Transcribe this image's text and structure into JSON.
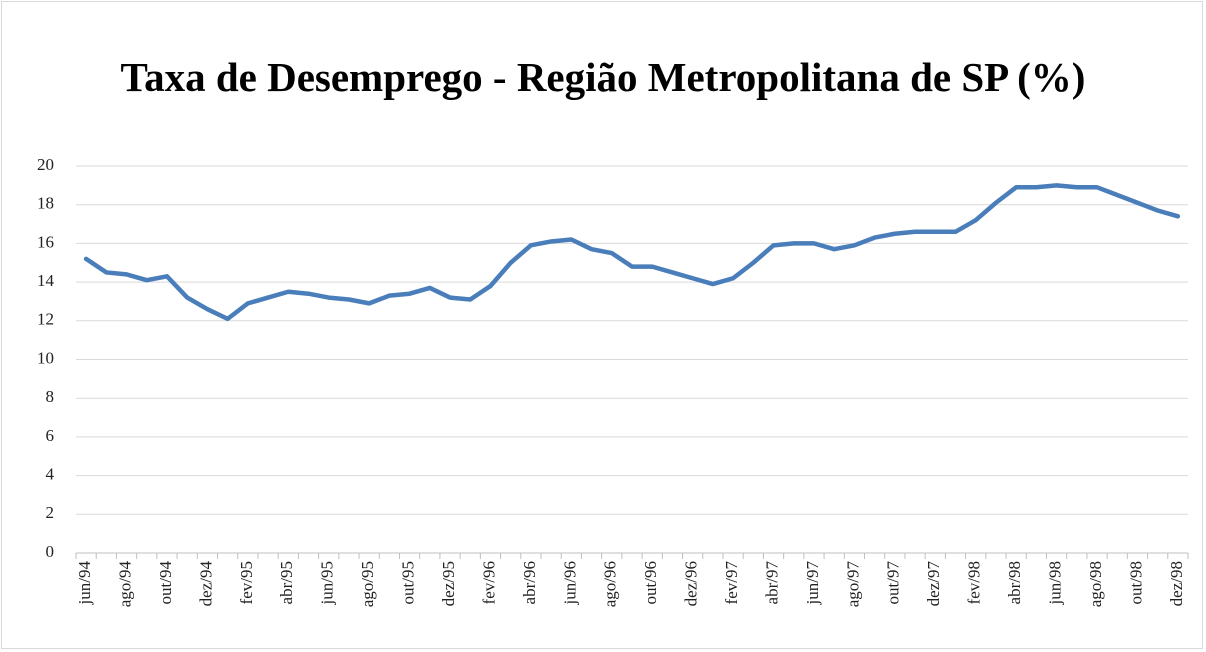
{
  "chart_data": {
    "type": "line",
    "title": "Taxa de Desemprego - Região Metropolitana de SP (%)",
    "categories": [
      "jun/94",
      null,
      "ago/94",
      null,
      "out/94",
      null,
      "dez/94",
      null,
      "fev/95",
      null,
      "abr/95",
      null,
      "jun/95",
      null,
      "ago/95",
      null,
      "out/95",
      null,
      "dez/95",
      null,
      "fev/96",
      null,
      "abr/96",
      null,
      "jun/96",
      null,
      "ago/96",
      null,
      "out/96",
      null,
      "dez/96",
      null,
      "fev/97",
      null,
      "abr/97",
      null,
      "jun/97",
      null,
      "ago/97",
      null,
      "out/97",
      null,
      "dez/97",
      null,
      "fev/98",
      null,
      "abr/98",
      null,
      "jun/98",
      null,
      "ago/98",
      null,
      "out/98",
      null,
      "dez/98"
    ],
    "values": [
      15.2,
      14.5,
      14.4,
      14.1,
      14.3,
      13.2,
      12.6,
      12.1,
      12.9,
      13.2,
      13.5,
      13.4,
      13.2,
      13.1,
      12.9,
      13.3,
      13.4,
      13.7,
      13.2,
      13.1,
      13.8,
      15.0,
      15.9,
      16.1,
      16.2,
      15.7,
      15.5,
      14.8,
      14.8,
      14.5,
      14.2,
      13.9,
      14.2,
      15.0,
      15.9,
      16.0,
      16.0,
      15.7,
      15.9,
      16.3,
      16.5,
      16.6,
      16.6,
      16.6,
      17.2,
      18.1,
      18.9,
      18.9,
      19.0,
      18.9,
      18.9,
      18.5,
      18.1,
      17.7,
      17.4
    ],
    "color": "#4a7ebb",
    "ylim": [
      0,
      20
    ],
    "yticks": [
      0,
      2,
      4,
      6,
      8,
      10,
      12,
      14,
      16,
      18,
      20
    ],
    "grid": true
  }
}
